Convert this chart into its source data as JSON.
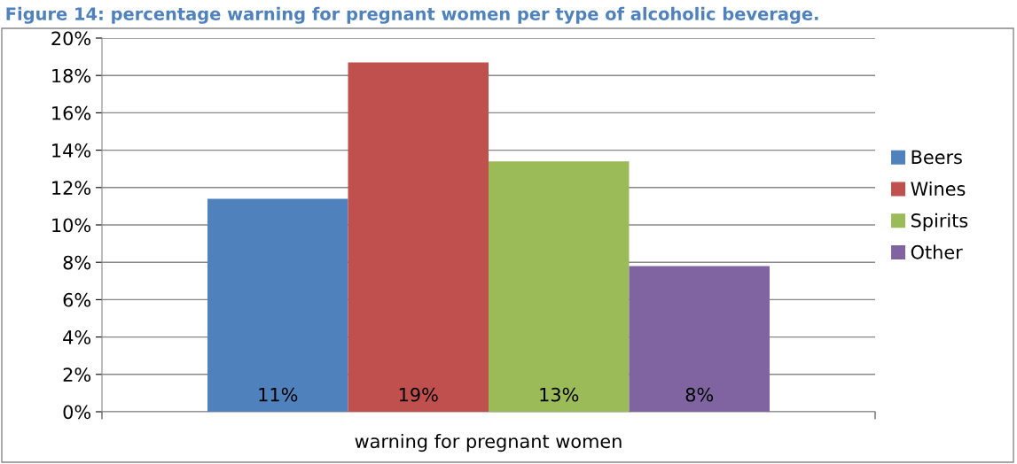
{
  "chart_data": {
    "type": "bar",
    "title": "Figure 14: percentage warning for pregnant women per type of alcoholic beverage.",
    "categories": [
      "warning for pregnant women"
    ],
    "series": [
      {
        "name": "Beers",
        "color": "#4f81bd",
        "values": [
          11.4
        ],
        "value_labels": [
          "11%"
        ]
      },
      {
        "name": "Wines",
        "color": "#c0504d",
        "values": [
          18.7
        ],
        "value_labels": [
          "19%"
        ]
      },
      {
        "name": "Spirits",
        "color": "#9bbb59",
        "values": [
          13.4
        ],
        "value_labels": [
          "13%"
        ]
      },
      {
        "name": "Other",
        "color": "#8064a2",
        "values": [
          7.8
        ],
        "value_labels": [
          "8%"
        ]
      }
    ],
    "ylim": [
      0,
      20
    ],
    "yticks": [
      {
        "value": 0,
        "label": "0%"
      },
      {
        "value": 2,
        "label": "2%"
      },
      {
        "value": 4,
        "label": "4%"
      },
      {
        "value": 6,
        "label": "6%"
      },
      {
        "value": 8,
        "label": "8%"
      },
      {
        "value": 10,
        "label": "10%"
      },
      {
        "value": 12,
        "label": "12%"
      },
      {
        "value": 14,
        "label": "14%"
      },
      {
        "value": 16,
        "label": "16%"
      },
      {
        "value": 18,
        "label": "18%"
      },
      {
        "value": 20,
        "label": "20%"
      }
    ],
    "grid": "y",
    "legend": "right"
  }
}
